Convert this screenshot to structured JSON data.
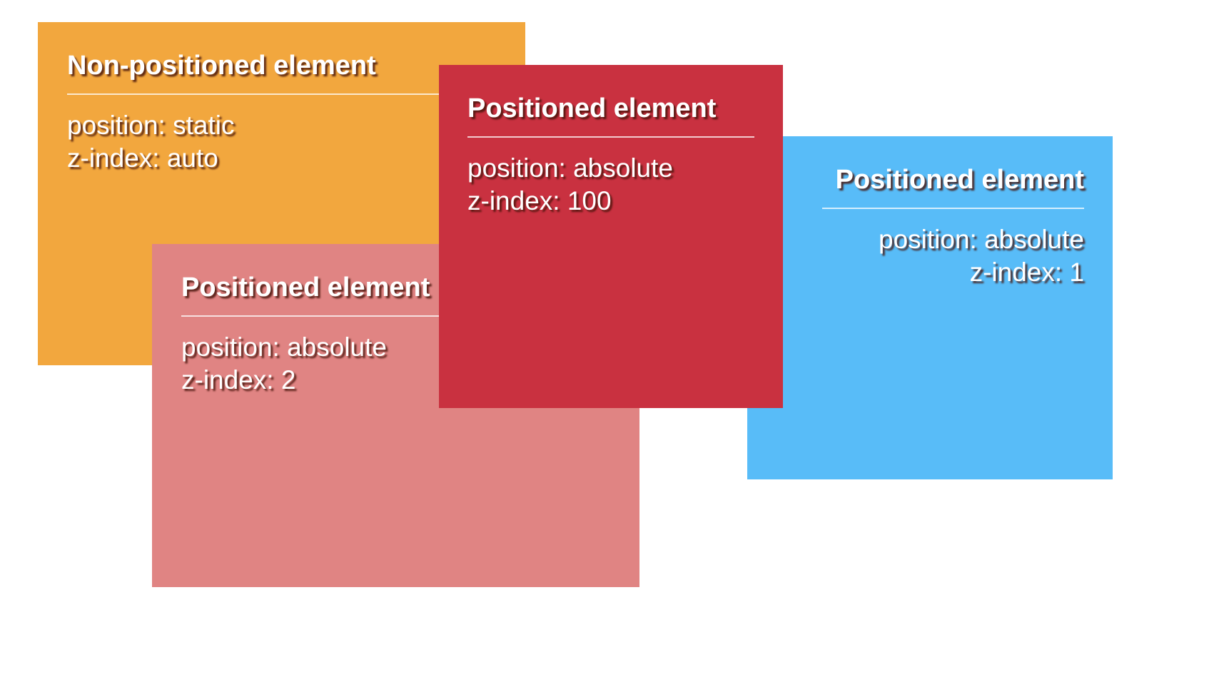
{
  "boxes": {
    "static": {
      "title": "Non-positioned element",
      "position": "position: static",
      "zindex": "z-index: auto",
      "color": "#f2a73e"
    },
    "z100": {
      "title": "Positioned element",
      "position": "position: absolute",
      "zindex": "z-index: 100",
      "color": "#c93140"
    },
    "z1": {
      "title": "Positioned element",
      "position": "position: absolute",
      "zindex": "z-index: 1",
      "color": "#58bcf8"
    },
    "z2": {
      "title": "Positioned element",
      "position": "position: absolute",
      "zindex": "z-index: 2",
      "color": "#e08483"
    }
  }
}
